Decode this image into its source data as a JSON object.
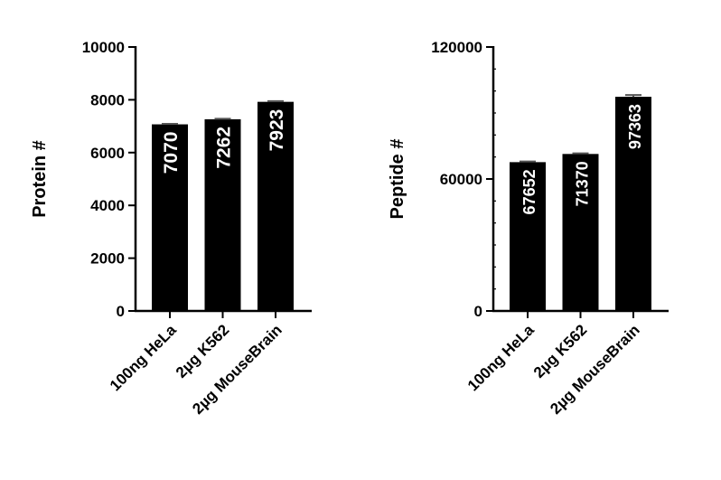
{
  "chart_data": [
    {
      "type": "bar",
      "title": "",
      "xlabel": "",
      "ylabel": "Protein #",
      "ylim": [
        0,
        10000
      ],
      "yticks": [
        "0",
        "2000",
        "4000",
        "6000",
        "8000",
        "10000"
      ],
      "minor_ticks": false,
      "grid": false,
      "legend": "none",
      "categories": [
        "100ng HeLa",
        "2µg K562",
        "2µg MouseBrain"
      ],
      "values": [
        7070,
        7262,
        7923
      ],
      "data_labels": [
        "7070",
        "7262",
        "7923"
      ],
      "errors": [
        20,
        20,
        25
      ],
      "bar_color": "#000000",
      "label_color": "#ffffff"
    },
    {
      "type": "bar",
      "title": "",
      "xlabel": "",
      "ylabel": "Peptide #",
      "ylim": [
        0,
        120000
      ],
      "yticks": [
        "0",
        "60000",
        "120000"
      ],
      "minor_ticks": true,
      "grid": false,
      "legend": "none",
      "categories": [
        "100ng HeLa",
        "2µg K562",
        "2µg MouseBrain"
      ],
      "values": [
        67652,
        71370,
        97363
      ],
      "data_labels": [
        "67652",
        "71370",
        "97363"
      ],
      "errors": [
        300,
        300,
        800
      ],
      "bar_color": "#000000",
      "label_color": "#ffffff"
    }
  ]
}
